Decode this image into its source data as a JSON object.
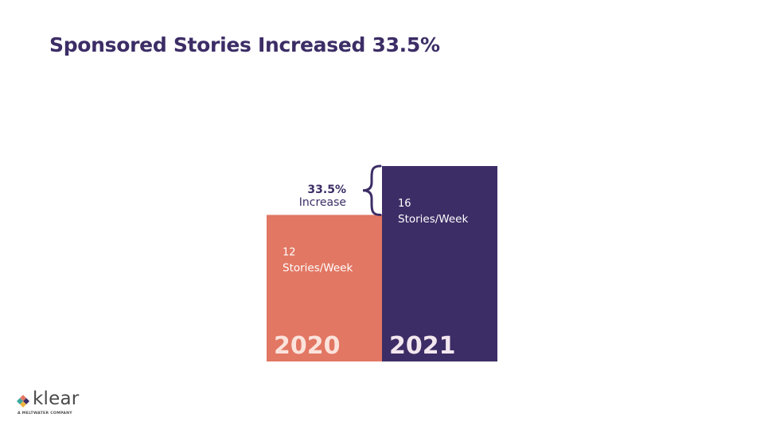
{
  "title": "Sponsored Stories Increased 33.5%",
  "chart_data": {
    "type": "bar",
    "categories": [
      "2020",
      "2021"
    ],
    "values": [
      12,
      16
    ],
    "value_labels": [
      "12",
      "16"
    ],
    "unit_label": "Stories/Week",
    "colors": [
      "#e27763",
      "#3c2d66"
    ],
    "annotation": {
      "value": "33.5%",
      "text": "Increase"
    },
    "title": "",
    "xlabel": "",
    "ylabel": "",
    "grid": false
  },
  "logo": {
    "brand": "klear",
    "tagline": "A MELTWATER COMPANY",
    "mark_colors": [
      "#e27763",
      "#3c2d66",
      "#3aa8a0",
      "#f0b541"
    ]
  }
}
